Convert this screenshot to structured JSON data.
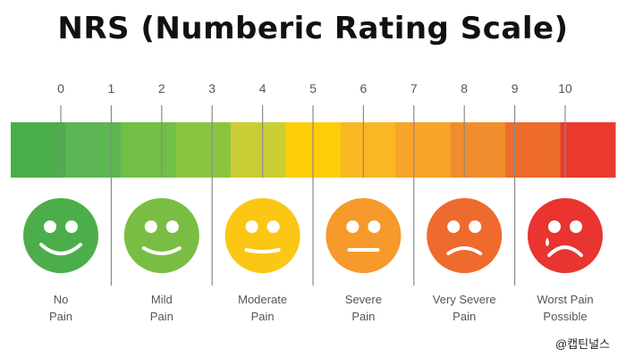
{
  "title": "NRS (Numberic Rating Scale)",
  "ticks": [
    "0",
    "1",
    "2",
    "3",
    "4",
    "5",
    "6",
    "7",
    "8",
    "9",
    "10"
  ],
  "segment_colors": [
    "#4aae49",
    "#5db553",
    "#71bf44",
    "#8bc540",
    "#c9ce34",
    "#fecd0a",
    "#f9b823",
    "#f6a42a",
    "#f18d2c",
    "#ed6c2c",
    "#ea3a2e"
  ],
  "faces": [
    {
      "name": "no-pain",
      "color": "#4cae4a",
      "mood": "happy",
      "label_lines": [
        "No",
        "Pain"
      ]
    },
    {
      "name": "mild-pain",
      "color": "#79be43",
      "mood": "smile",
      "label_lines": [
        "Mild",
        "Pain"
      ]
    },
    {
      "name": "moderate-pain",
      "color": "#fcc615",
      "mood": "neutral",
      "label_lines": [
        "Moderate",
        "Pain"
      ]
    },
    {
      "name": "severe-pain",
      "color": "#f59a2b",
      "mood": "flat",
      "label_lines": [
        "Severe",
        "Pain"
      ]
    },
    {
      "name": "very-severe-pain",
      "color": "#ef6a2d",
      "mood": "frown",
      "label_lines": [
        "Very Severe",
        "Pain"
      ]
    },
    {
      "name": "worst-pain-possible",
      "color": "#e93430",
      "mood": "cry",
      "label_lines": [
        "Worst Pain",
        "Possible"
      ]
    }
  ],
  "watermark": "@캡틴널스"
}
